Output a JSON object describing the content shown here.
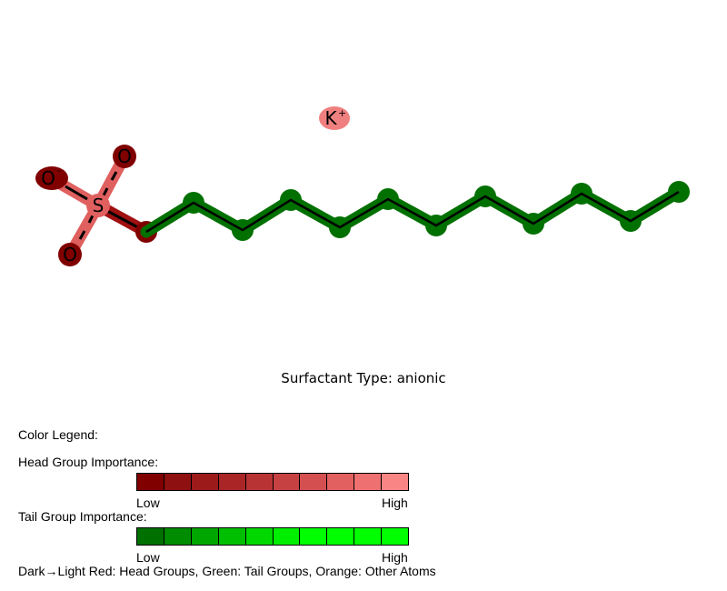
{
  "molecule": {
    "cation": {
      "symbol": "K",
      "charge": "+"
    },
    "sulfur": {
      "symbol": "S"
    },
    "oxygen_top": {
      "symbol": "O"
    },
    "oxygen_left": {
      "symbol": "O",
      "charge": "-"
    },
    "oxygen_bottom": {
      "symbol": "O"
    },
    "colors": {
      "head_dark": "#800000",
      "head_mid": "#a01010",
      "head_light": "#e06060",
      "cation": "#f08080",
      "tail": "#007000",
      "bond_line": "#000000"
    },
    "tail_carbon_count": 12
  },
  "caption": "Surfactant Type: anionic",
  "legend": {
    "title": "Color Legend:",
    "head_label": "Head Group Importance:",
    "tail_label": "Tail Group Importance:",
    "low": "Low",
    "high": "High",
    "head_colors": [
      "#800000",
      "#8e1010",
      "#9c1a1a",
      "#aa2626",
      "#b83434",
      "#c64242",
      "#d45050",
      "#e26060",
      "#ee7070",
      "#fa8585"
    ],
    "tail_colors": [
      "#007000",
      "#008c00",
      "#00a600",
      "#00bf00",
      "#00d800",
      "#00ef00",
      "#00ff00",
      "#00ff00",
      "#00ff00",
      "#00ff00"
    ],
    "footer": "Dark→Light Red: Head Groups, Green: Tail Groups, Orange: Other Atoms"
  }
}
